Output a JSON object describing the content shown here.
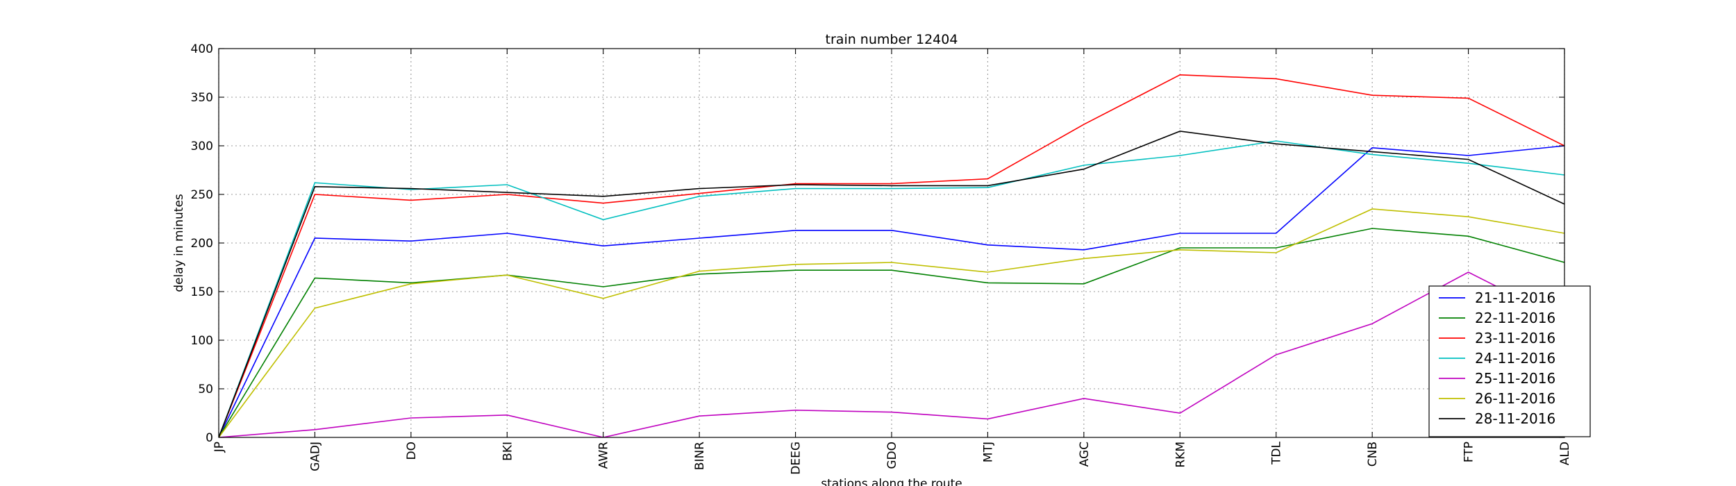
{
  "chart_data": {
    "type": "line",
    "title": "train number 12404",
    "xlabel": "stations along the route",
    "ylabel": "delay in minutes",
    "categories": [
      "JP",
      "GADJ",
      "DO",
      "BKI",
      "AWR",
      "BINR",
      "DEEG",
      "GDO",
      "MTJ",
      "AGC",
      "RKM",
      "TDL",
      "CNB",
      "FTP",
      "ALD"
    ],
    "ylim": [
      0,
      400
    ],
    "yticks": [
      0,
      50,
      100,
      150,
      200,
      250,
      300,
      350,
      400
    ],
    "grid": true,
    "legend_position": "lower-right",
    "series": [
      {
        "name": "21-11-2016",
        "color": "#0000ff",
        "values": [
          0,
          205,
          202,
          210,
          197,
          205,
          213,
          213,
          198,
          193,
          210,
          210,
          298,
          290,
          300
        ]
      },
      {
        "name": "22-11-2016",
        "color": "#008000",
        "values": [
          0,
          164,
          159,
          167,
          155,
          168,
          172,
          172,
          159,
          158,
          195,
          195,
          215,
          207,
          180
        ]
      },
      {
        "name": "23-11-2016",
        "color": "#ff0000",
        "values": [
          0,
          250,
          244,
          250,
          241,
          251,
          261,
          261,
          266,
          322,
          373,
          369,
          352,
          349,
          300
        ]
      },
      {
        "name": "24-11-2016",
        "color": "#00bfbf",
        "values": [
          0,
          262,
          255,
          260,
          224,
          248,
          256,
          256,
          257,
          280,
          290,
          305,
          291,
          282,
          270
        ]
      },
      {
        "name": "25-11-2016",
        "color": "#bf00bf",
        "values": [
          0,
          8,
          20,
          23,
          0,
          22,
          28,
          26,
          19,
          40,
          25,
          85,
          117,
          170,
          120
        ]
      },
      {
        "name": "26-11-2016",
        "color": "#bfbf00",
        "values": [
          0,
          133,
          158,
          167,
          143,
          171,
          178,
          180,
          170,
          184,
          193,
          190,
          235,
          227,
          210
        ]
      },
      {
        "name": "28-11-2016",
        "color": "#000000",
        "values": [
          0,
          258,
          256,
          252,
          248,
          256,
          260,
          259,
          259,
          276,
          315,
          302,
          294,
          286,
          240
        ]
      }
    ]
  }
}
